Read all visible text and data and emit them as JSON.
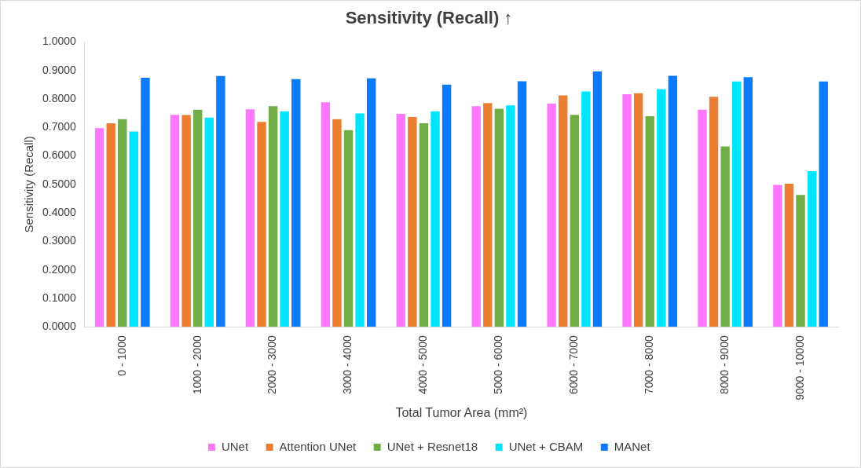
{
  "chart_data": {
    "type": "bar",
    "title": "Sensitivity (Recall) ↑",
    "xlabel": "Total Tumor Area (mm²)",
    "ylabel": "Sensitivity (Recall)",
    "categories": [
      "0 - 1000",
      "1000 - 2000",
      "2000 - 3000",
      "3000 - 4000",
      "4000 - 5000",
      "5000 - 6000",
      "6000 - 7000",
      "7000 - 8000",
      "8000 - 9000",
      "9000 - 10000"
    ],
    "series": [
      {
        "name": "UNet",
        "color": "#ff77ff",
        "values": [
          0.7,
          0.747,
          0.766,
          0.791,
          0.75,
          0.777,
          0.786,
          0.819,
          0.765,
          0.501
        ]
      },
      {
        "name": "Attention UNet",
        "color": "#ed7d31",
        "values": [
          0.717,
          0.746,
          0.722,
          0.732,
          0.739,
          0.788,
          0.815,
          0.823,
          0.81,
          0.505
        ]
      },
      {
        "name": "UNet + Resnet18",
        "color": "#70ad47",
        "values": [
          0.732,
          0.765,
          0.777,
          0.693,
          0.717,
          0.768,
          0.747,
          0.742,
          0.636,
          0.466
        ]
      },
      {
        "name": "UNet + CBAM",
        "color": "#00e5ff",
        "values": [
          0.688,
          0.737,
          0.759,
          0.752,
          0.759,
          0.78,
          0.829,
          0.837,
          0.864,
          0.549
        ]
      },
      {
        "name": "MANet",
        "color": "#0a7bff",
        "values": [
          0.877,
          0.883,
          0.872,
          0.875,
          0.853,
          0.865,
          0.899,
          0.884,
          0.879,
          0.864
        ]
      }
    ],
    "ylim": [
      0,
      1
    ],
    "yticks": [
      {
        "value": 0,
        "label": "0.0000"
      },
      {
        "value": 0.1,
        "label": "0.1000"
      },
      {
        "value": 0.2,
        "label": "0.2000"
      },
      {
        "value": 0.3,
        "label": "0.3000"
      },
      {
        "value": 0.4,
        "label": "0.4000"
      },
      {
        "value": 0.5,
        "label": "0.5000"
      },
      {
        "value": 0.6,
        "label": "0.6000"
      },
      {
        "value": 0.7,
        "label": "0.7000"
      },
      {
        "value": 0.8,
        "label": "0.8000"
      },
      {
        "value": 0.9,
        "label": "0.9000"
      },
      {
        "value": 1,
        "label": "1.0000"
      }
    ],
    "grid": false,
    "legend": "bottom"
  }
}
